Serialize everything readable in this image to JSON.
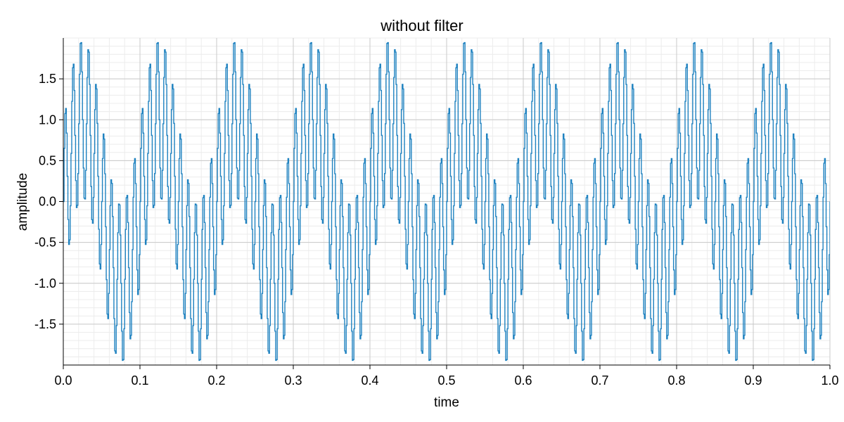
{
  "chart_data": {
    "type": "line",
    "title": "without filter",
    "xlabel": "time",
    "ylabel": "amplitude",
    "xlim": [
      0,
      1
    ],
    "ylim": [
      -2.0,
      2.0
    ],
    "grid": true,
    "minor_grid": true,
    "x_ticks": [
      "0.0",
      "0.1",
      "0.2",
      "0.3",
      "0.4",
      "0.5",
      "0.6",
      "0.7",
      "0.8",
      "0.9",
      "1.0"
    ],
    "y_ticks": [
      "1.5",
      "1.0",
      "0.5",
      "0.0",
      "-0.5",
      "-1.0",
      "-1.5"
    ],
    "x_tick_values": [
      0,
      0.1,
      0.2,
      0.3,
      0.4,
      0.5,
      0.6,
      0.7,
      0.8,
      0.9,
      1.0
    ],
    "y_tick_values": [
      1.5,
      1.0,
      0.5,
      0.0,
      -0.5,
      -1.0,
      -1.5
    ],
    "series": [
      {
        "color": "#1f82c0",
        "step": true,
        "components": [
          {
            "amplitude": 1.0,
            "frequency_hz": 10
          },
          {
            "amplitude": 1.0,
            "frequency_hz": 100
          }
        ],
        "sample_rate_hz": 1000
      }
    ]
  }
}
